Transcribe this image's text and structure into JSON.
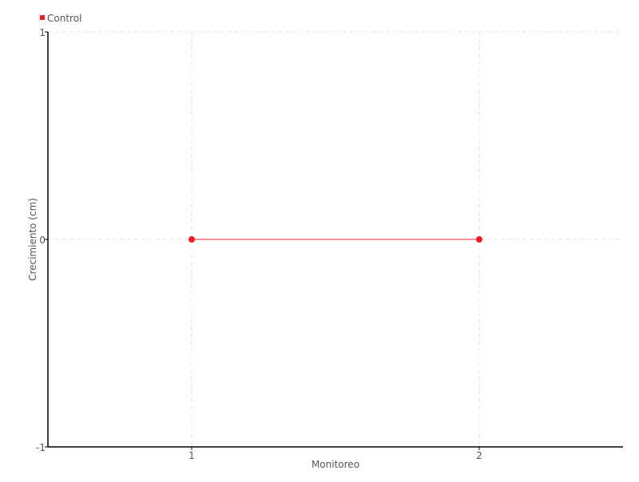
{
  "chart_data": {
    "type": "line",
    "title": "",
    "xlabel": "Monitoreo",
    "ylabel": "Crecimiento (cm)",
    "x": [
      1,
      2
    ],
    "xticks": [
      "1",
      "2"
    ],
    "yticks": [
      "1",
      "0",
      "-1"
    ],
    "xlim": [
      0.5,
      2.5
    ],
    "ylim": [
      -1,
      1
    ],
    "grid": true,
    "legend_position": "top-left",
    "series": [
      {
        "name": "Control",
        "values": [
          0,
          0
        ],
        "color": "#ee1c25"
      }
    ]
  }
}
